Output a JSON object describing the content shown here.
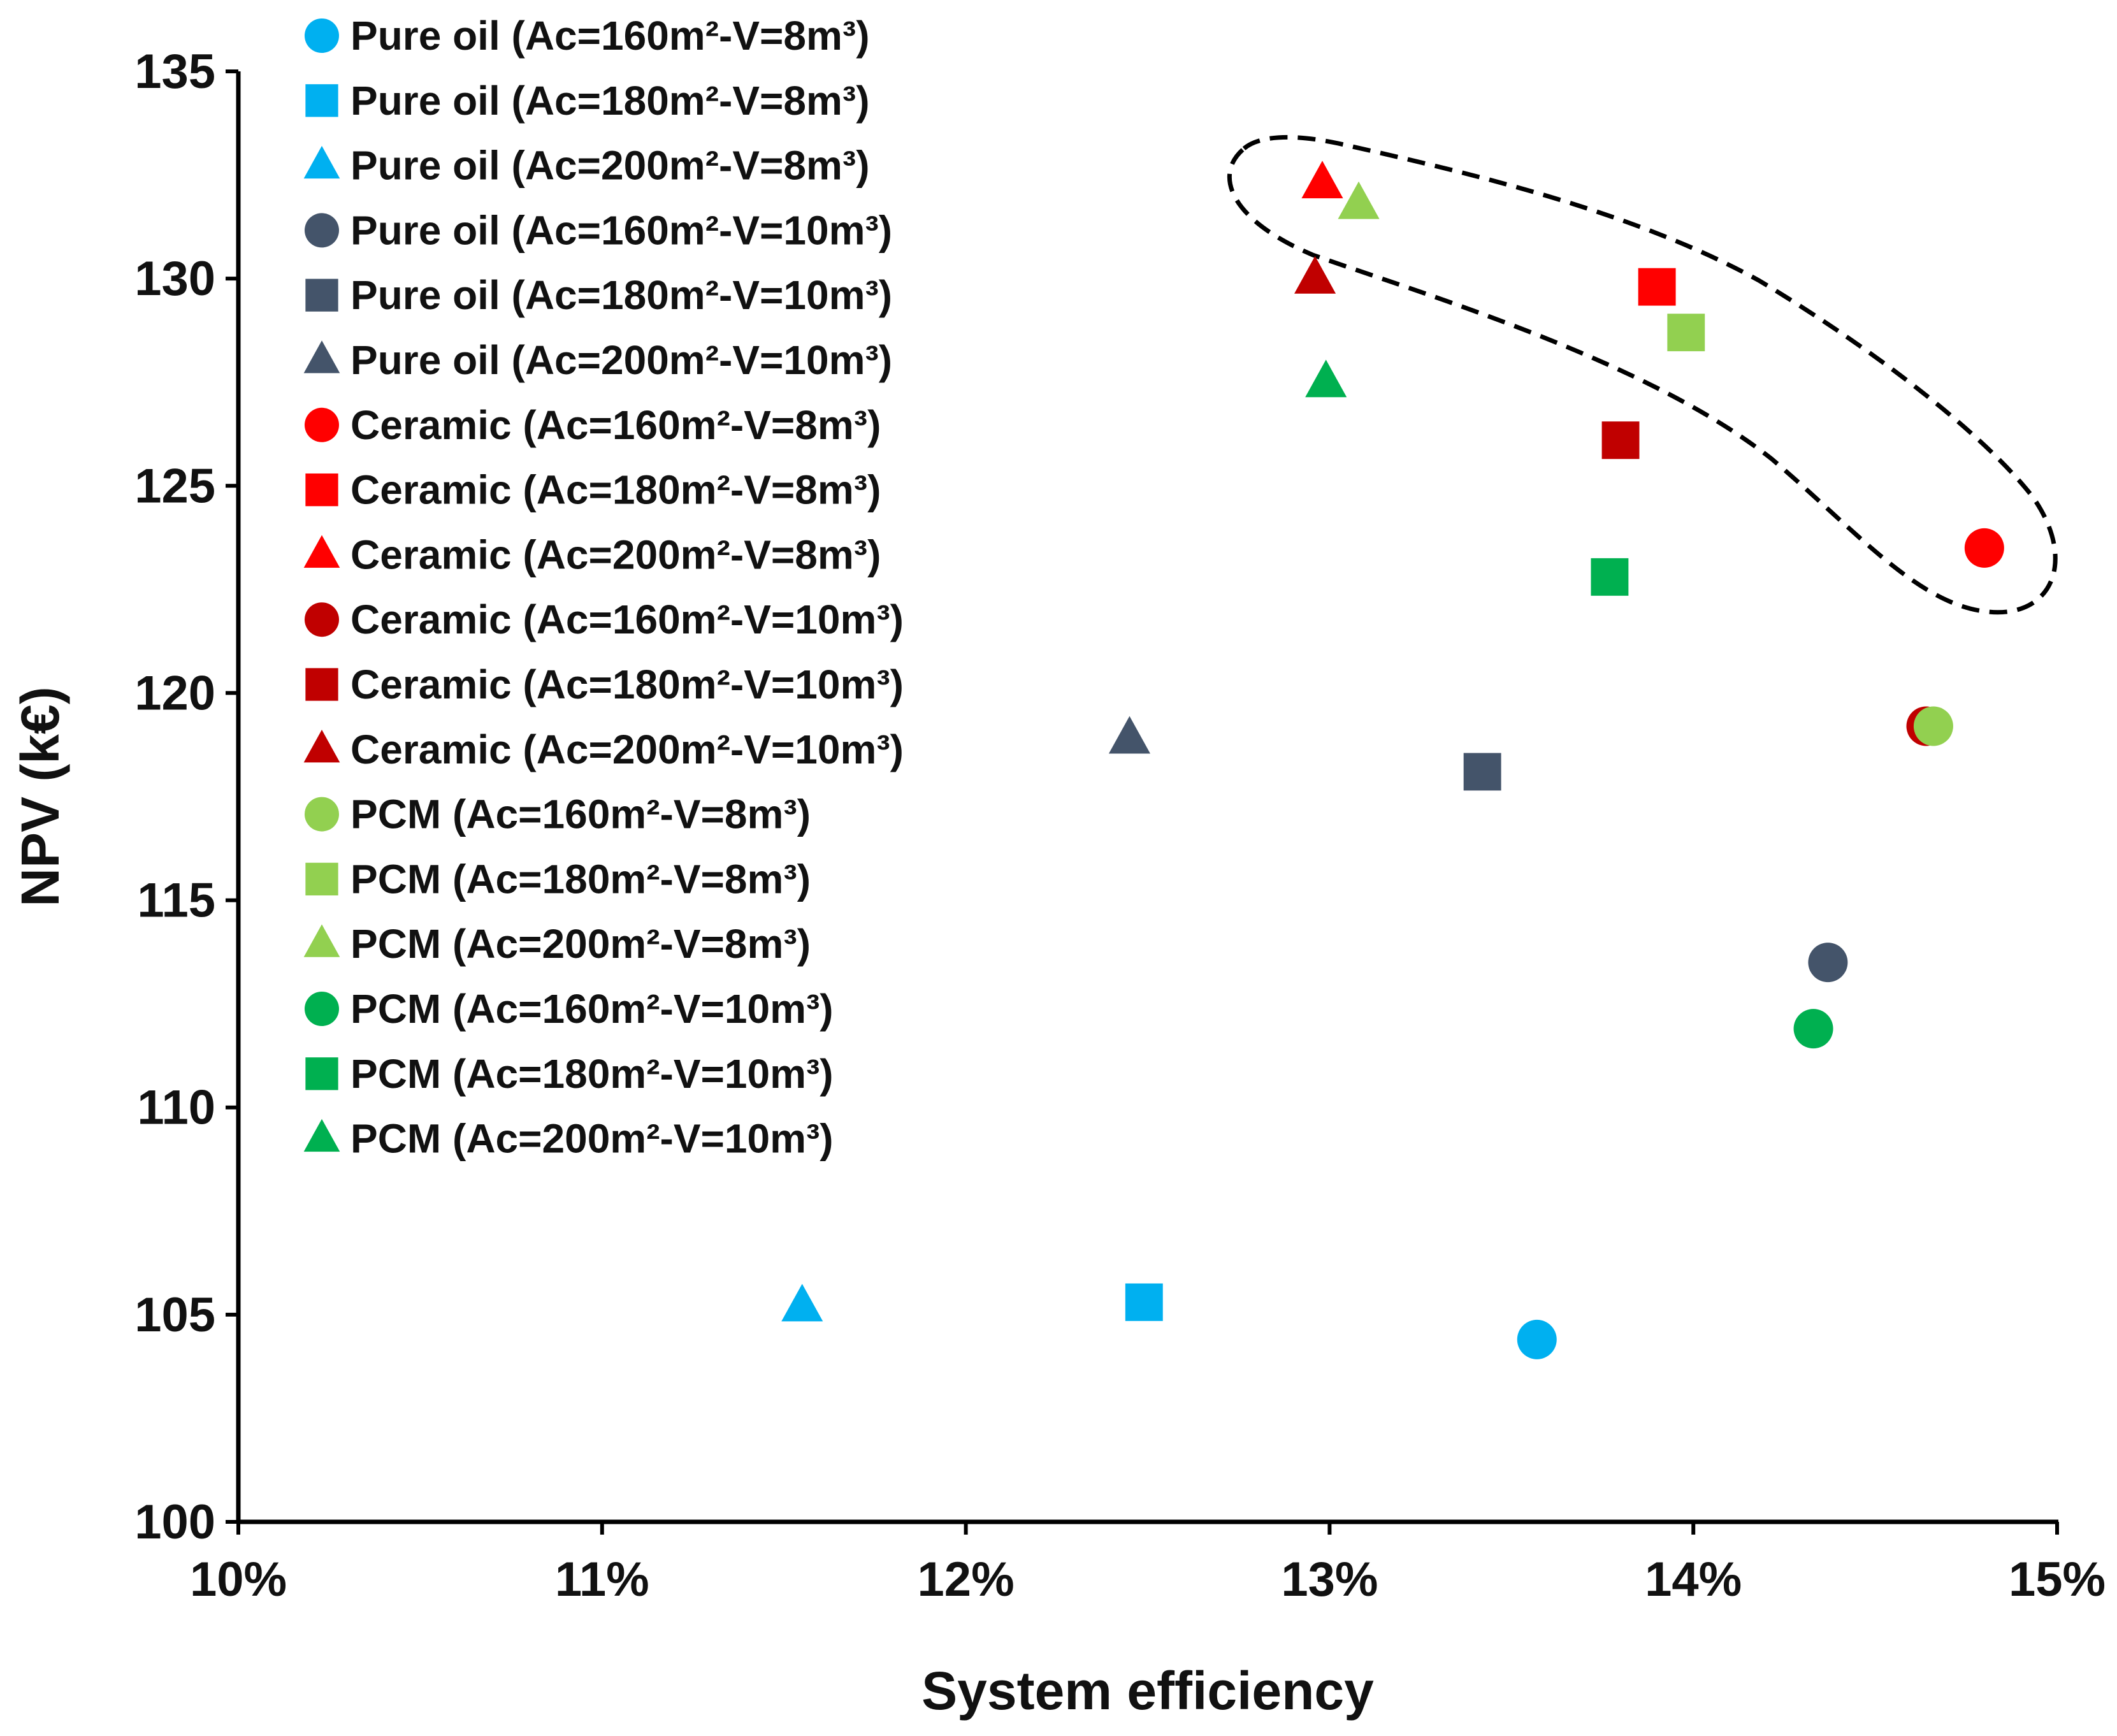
{
  "chart_data": {
    "type": "scatter",
    "title": "",
    "xlabel": "System efficiency",
    "ylabel": "NPV (k€)",
    "xlim": [
      10,
      15
    ],
    "ylim": [
      100,
      135
    ],
    "x_ticks": [
      10,
      11,
      12,
      13,
      14,
      15
    ],
    "x_tick_labels": [
      "10%",
      "11%",
      "12%",
      "13%",
      "14%",
      "15%"
    ],
    "y_ticks": [
      100,
      105,
      110,
      115,
      120,
      125,
      130,
      135
    ],
    "y_tick_labels": [
      "100",
      "105",
      "110",
      "115",
      "120",
      "125",
      "130",
      "135"
    ],
    "grid": false,
    "legend_position": "top-left",
    "annotation": "dashed ellipse enclosing the highest-NPV points",
    "series": [
      {
        "name": "Pure oil (Ac=160m²-V=8m³)",
        "marker": "circle",
        "color": "#00b0f0",
        "x": 13.57,
        "y": 104.4
      },
      {
        "name": "Pure oil (Ac=180m²-V=8m³)",
        "marker": "square",
        "color": "#00b0f0",
        "x": 12.49,
        "y": 105.3
      },
      {
        "name": "Pure oil (Ac=200m²-V=8m³)",
        "marker": "triangle",
        "color": "#00b0f0",
        "x": 11.55,
        "y": 105.2
      },
      {
        "name": "Pure oil (Ac=160m²-V=10m³)",
        "marker": "circle",
        "color": "#44546a",
        "x": 14.37,
        "y": 113.5
      },
      {
        "name": "Pure oil (Ac=180m²-V=10m³)",
        "marker": "square",
        "color": "#44546a",
        "x": 13.42,
        "y": 118.1
      },
      {
        "name": "Pure oil (Ac=200m²-V=10m³)",
        "marker": "triangle",
        "color": "#44546a",
        "x": 12.45,
        "y": 118.9
      },
      {
        "name": "Ceramic (Ac=160m²-V=8m³)",
        "marker": "circle",
        "color": "#ff0000",
        "x": 14.8,
        "y": 123.5
      },
      {
        "name": "Ceramic (Ac=180m²-V=8m³)",
        "marker": "square",
        "color": "#ff0000",
        "x": 13.9,
        "y": 129.8
      },
      {
        "name": "Ceramic (Ac=200m²-V=8m³)",
        "marker": "triangle",
        "color": "#ff0000",
        "x": 12.98,
        "y": 132.3
      },
      {
        "name": "Ceramic (Ac=160m²-V=10m³)",
        "marker": "circle",
        "color": "#c00000",
        "x": 14.64,
        "y": 119.2
      },
      {
        "name": "Ceramic (Ac=180m²-V=10m³)",
        "marker": "square",
        "color": "#c00000",
        "x": 13.8,
        "y": 126.1
      },
      {
        "name": "Ceramic (Ac=200m²-V=10m³)",
        "marker": "triangle",
        "color": "#c00000",
        "x": 12.96,
        "y": 130.0
      },
      {
        "name": "PCM (Ac=160m²-V=8m³)",
        "marker": "circle",
        "color": "#92d050",
        "x": 14.66,
        "y": 119.2
      },
      {
        "name": "PCM (Ac=180m²-V=8m³)",
        "marker": "square",
        "color": "#92d050",
        "x": 13.98,
        "y": 128.7
      },
      {
        "name": "PCM (Ac=200m²-V=8m³)",
        "marker": "triangle",
        "color": "#92d050",
        "x": 13.08,
        "y": 131.8
      },
      {
        "name": "PCM (Ac=160m²-V=10m³)",
        "marker": "circle",
        "color": "#00b050",
        "x": 14.33,
        "y": 111.9
      },
      {
        "name": "PCM (Ac=180m²-V=10m³)",
        "marker": "square",
        "color": "#00b050",
        "x": 13.77,
        "y": 122.8
      },
      {
        "name": "PCM (Ac=200m²-V=10m³)",
        "marker": "triangle",
        "color": "#00b050",
        "x": 12.99,
        "y": 127.5
      }
    ]
  }
}
